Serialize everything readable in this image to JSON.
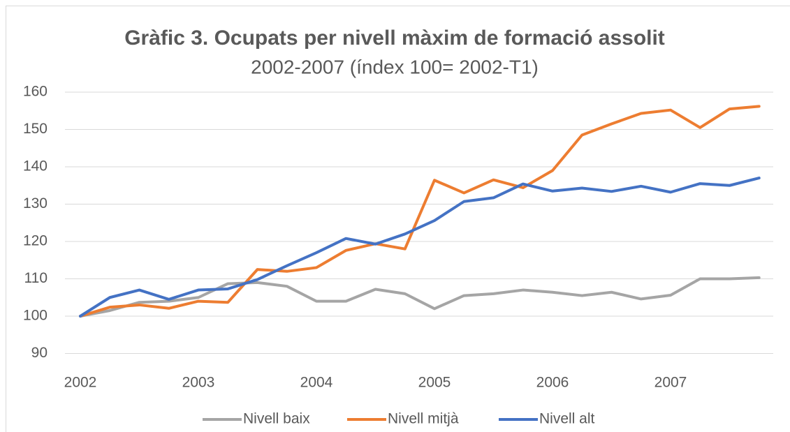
{
  "chart_data": {
    "type": "line",
    "title": "Gràfic 3. Ocupats per nivell màxim de formació assolit",
    "subtitle": "2002-2007 (índex 100= 2002-T1)",
    "categories": [
      "2002",
      null,
      null,
      null,
      "2003",
      null,
      null,
      null,
      "2004",
      null,
      null,
      null,
      "2005",
      null,
      null,
      null,
      "2006",
      null,
      null,
      null,
      "2007",
      null,
      null,
      null
    ],
    "series": [
      {
        "name": "Nivell baix",
        "color": "#a5a5a5",
        "values": [
          100,
          101.5,
          103.7,
          104,
          105,
          108.7,
          109,
          108,
          104,
          104,
          107.2,
          106,
          102,
          105.5,
          106,
          107,
          106.4,
          105.5,
          106.4,
          104.6,
          105.6,
          110,
          110,
          110.3
        ]
      },
      {
        "name": "Nivell mitjà",
        "color": "#ed7d31",
        "values": [
          100,
          102.4,
          103,
          102.1,
          104,
          103.7,
          112.5,
          112,
          113,
          117.6,
          119.4,
          118,
          136.4,
          133,
          136.5,
          134.4,
          139,
          148.5,
          151.5,
          154.3,
          155.2,
          150.5,
          155.5,
          156.2
        ]
      },
      {
        "name": "Nivell alt",
        "color": "#4472c4",
        "values": [
          100,
          105,
          107,
          104.5,
          107,
          107.3,
          109.8,
          113.5,
          117,
          120.8,
          119.3,
          122,
          125.6,
          130.7,
          131.7,
          135.4,
          133.5,
          134.3,
          133.4,
          134.8,
          133.2,
          135.5,
          135,
          137
        ]
      }
    ],
    "ylim": [
      90,
      160
    ],
    "yticks": [
      90,
      100,
      110,
      120,
      130,
      140,
      150,
      160
    ],
    "grid": true,
    "legend": "bottom"
  }
}
